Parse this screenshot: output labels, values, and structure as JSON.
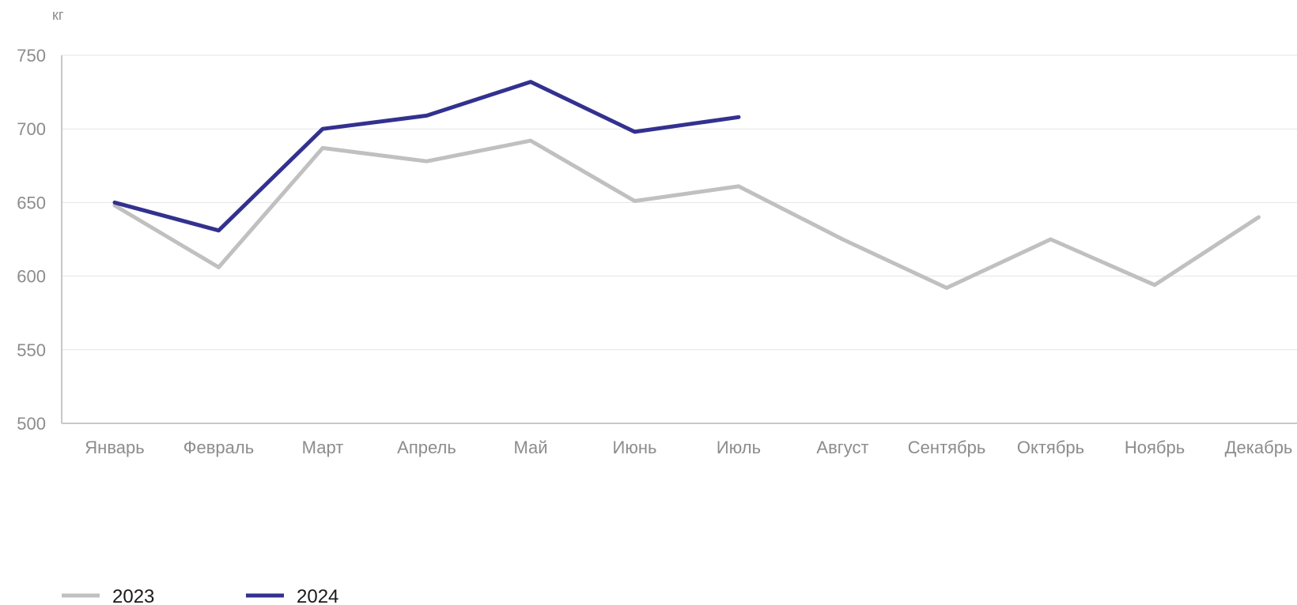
{
  "chart_data": {
    "type": "line",
    "title": "",
    "xlabel": "",
    "ylabel": "кг",
    "ylim": [
      500,
      750
    ],
    "yticks": [
      500,
      550,
      600,
      650,
      700,
      750
    ],
    "grid": true,
    "legend_position": "bottom-left",
    "categories": [
      "Январь",
      "Февраль",
      "Март",
      "Апрель",
      "Май",
      "Июнь",
      "Июль",
      "Август",
      "Сентябрь",
      "Октябрь",
      "Ноябрь",
      "Декабрь"
    ],
    "series": [
      {
        "name": "2023",
        "color": "#c0c0c0",
        "values": [
          648,
          606,
          687,
          678,
          692,
          651,
          661,
          625,
          592,
          625,
          594,
          640
        ]
      },
      {
        "name": "2024",
        "color": "#33318f",
        "values": [
          650,
          631,
          700,
          709,
          732,
          698,
          708,
          null,
          null,
          null,
          null,
          null
        ]
      }
    ]
  }
}
